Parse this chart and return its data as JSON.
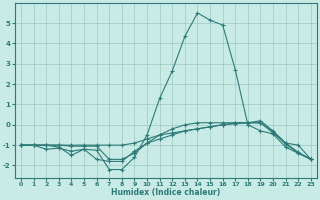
{
  "title": "",
  "xlabel": "Humidex (Indice chaleur)",
  "ylabel": "",
  "background_color": "#c8ebe6",
  "grid_color": "#a0c8c4",
  "line_color": "#2d7a78",
  "xlim": [
    -0.5,
    23.5
  ],
  "ylim": [
    -2.6,
    6.0
  ],
  "xticks": [
    0,
    1,
    2,
    3,
    4,
    5,
    6,
    7,
    8,
    9,
    10,
    11,
    12,
    13,
    14,
    15,
    16,
    17,
    18,
    19,
    20,
    21,
    22,
    23
  ],
  "yticks": [
    -2,
    -1,
    0,
    1,
    2,
    3,
    4,
    5
  ],
  "line1_x": [
    0,
    1,
    2,
    3,
    4,
    5,
    6,
    7,
    8,
    9,
    10,
    11,
    12,
    13,
    14,
    15,
    16,
    17,
    18,
    19,
    20,
    21,
    22,
    23
  ],
  "line1_y": [
    -1.0,
    -1.0,
    -1.2,
    -1.15,
    -1.3,
    -1.2,
    -1.7,
    -1.8,
    -1.8,
    -1.3,
    -0.9,
    -0.7,
    -0.5,
    -0.3,
    -0.2,
    -0.1,
    0.0,
    0.1,
    0.1,
    0.2,
    -0.3,
    -0.9,
    -1.35,
    -1.7
  ],
  "line2_x": [
    0,
    1,
    2,
    3,
    4,
    5,
    6,
    7,
    8,
    9,
    10,
    11,
    12,
    13,
    14,
    15,
    16,
    17,
    18,
    19,
    20,
    21,
    22,
    23
  ],
  "line2_y": [
    -1.0,
    -1.0,
    -1.0,
    -1.0,
    -1.0,
    -1.0,
    -1.0,
    -1.0,
    -1.0,
    -0.9,
    -0.7,
    -0.5,
    -0.4,
    -0.3,
    -0.2,
    -0.1,
    0.0,
    0.05,
    0.1,
    0.1,
    -0.4,
    -0.9,
    -1.0,
    -1.7
  ],
  "line3_x": [
    0,
    1,
    2,
    3,
    4,
    5,
    6,
    7,
    8,
    9,
    10,
    11,
    12,
    13,
    14,
    15,
    16,
    17,
    18,
    19,
    20,
    21,
    22,
    23
  ],
  "line3_y": [
    -1.0,
    -1.0,
    -1.0,
    -1.1,
    -1.5,
    -1.2,
    -1.25,
    -2.2,
    -2.2,
    -1.6,
    -0.5,
    1.3,
    2.65,
    4.35,
    5.5,
    5.15,
    4.9,
    2.7,
    0.0,
    -0.3,
    -0.45,
    -1.1,
    -1.4,
    -1.7
  ],
  "line4_x": [
    0,
    1,
    2,
    3,
    4,
    5,
    6,
    7,
    8,
    9,
    10,
    11,
    12,
    13,
    14,
    15,
    16,
    17,
    18,
    19,
    20,
    21,
    22,
    23
  ],
  "line4_y": [
    -1.0,
    -1.0,
    -1.0,
    -1.0,
    -1.05,
    -1.05,
    -1.05,
    -1.7,
    -1.7,
    -1.4,
    -0.9,
    -0.5,
    -0.2,
    0.0,
    0.1,
    0.1,
    0.1,
    0.1,
    0.1,
    0.1,
    -0.35,
    -0.95,
    -1.4,
    -1.7
  ],
  "marker": "+",
  "markersize": 3,
  "linewidth": 0.8
}
